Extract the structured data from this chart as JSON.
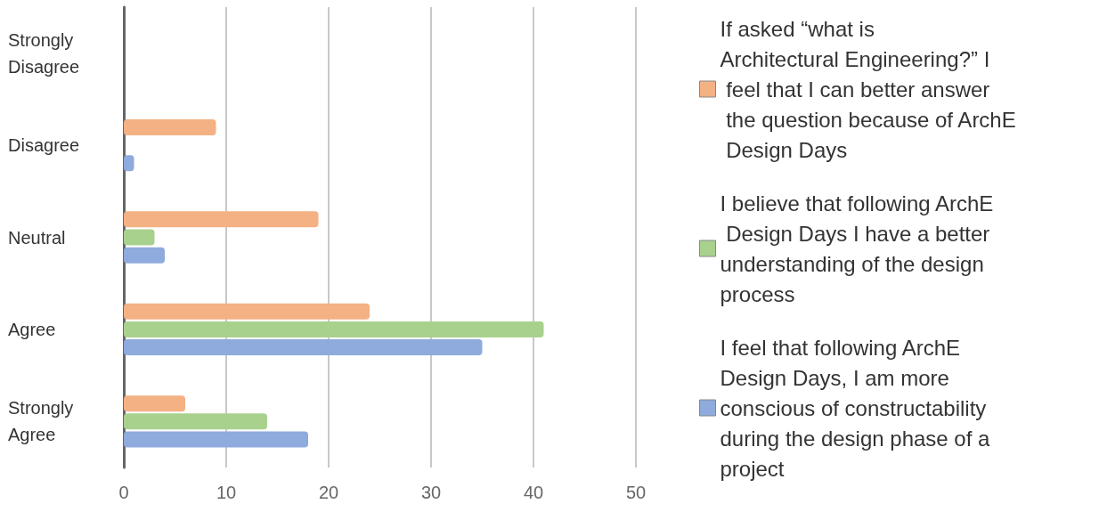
{
  "chart_data": {
    "type": "bar",
    "orientation": "horizontal",
    "categories": [
      "Strongly Disagree",
      "Disagree",
      "Neutral",
      "Agree",
      "Strongly Agree"
    ],
    "series": [
      {
        "name": "If asked “what is Architectural Engineering?” I feel that I can better answer the question because of ArchE Design Days",
        "color": "#f4b183",
        "values": [
          0,
          9,
          19,
          24,
          6
        ]
      },
      {
        "name": "I believe that following ArchE Design Days I have a better understanding of the design process",
        "color": "#a9d18e",
        "values": [
          0,
          0,
          3,
          41,
          14
        ]
      },
      {
        "name": "I feel that following ArchE Design Days, I am more conscious of constructability during the design phase of a project",
        "color": "#8faadc",
        "values": [
          0,
          1,
          4,
          35,
          18
        ]
      }
    ],
    "xlim": [
      0,
      50
    ],
    "xticks": [
      0,
      10,
      20,
      30,
      40,
      50
    ],
    "grid": "x",
    "legend": "right"
  }
}
